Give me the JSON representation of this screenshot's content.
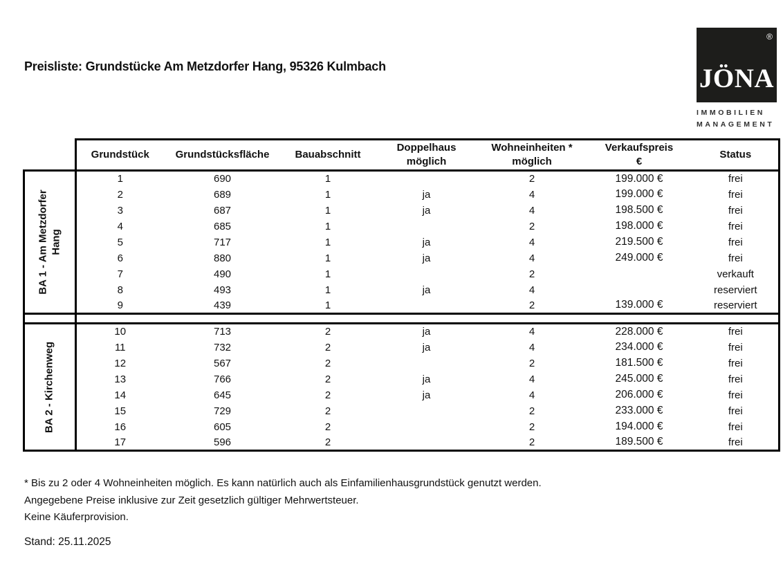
{
  "page": {
    "title": "Preisliste: Grundstücke Am Metzdorfer Hang, 95326 Kulmbach",
    "stand": "Stand: 25.11.2025"
  },
  "logo": {
    "name": "JÖNA",
    "registered": "®",
    "subtitle_line1": "IMMOBILIEN",
    "subtitle_line2": "MANAGEMENT"
  },
  "colors": {
    "logo_square": "#1d1d1b",
    "table_border": "#000000",
    "text": "#111111"
  },
  "table": {
    "columns": [
      {
        "line1": "Grundstück",
        "line2": ""
      },
      {
        "line1": "Grundstücksfläche",
        "line2": ""
      },
      {
        "line1": "Bauabschnitt",
        "line2": ""
      },
      {
        "line1": "Doppelhaus",
        "line2": "möglich"
      },
      {
        "line1": "Wohneinheiten *",
        "line2": "möglich"
      },
      {
        "line1": "Verkaufspreis",
        "line2": "€"
      },
      {
        "line1": "Status",
        "line2": ""
      }
    ],
    "sections": [
      {
        "label": "BA 1 - Am Metzdorfer Hang",
        "rows": [
          {
            "grundstueck": "1",
            "flaeche": "690",
            "bauabschnitt": "1",
            "doppelhaus": "",
            "wohneinheiten": "2",
            "verkaufspreis": "199.000 €",
            "status": "frei"
          },
          {
            "grundstueck": "2",
            "flaeche": "689",
            "bauabschnitt": "1",
            "doppelhaus": "ja",
            "wohneinheiten": "4",
            "verkaufspreis": "199.000 €",
            "status": "frei"
          },
          {
            "grundstueck": "3",
            "flaeche": "687",
            "bauabschnitt": "1",
            "doppelhaus": "ja",
            "wohneinheiten": "4",
            "verkaufspreis": "198.500 €",
            "status": "frei"
          },
          {
            "grundstueck": "4",
            "flaeche": "685",
            "bauabschnitt": "1",
            "doppelhaus": "",
            "wohneinheiten": "2",
            "verkaufspreis": "198.000 €",
            "status": "frei"
          },
          {
            "grundstueck": "5",
            "flaeche": "717",
            "bauabschnitt": "1",
            "doppelhaus": "ja",
            "wohneinheiten": "4",
            "verkaufspreis": "219.500 €",
            "status": "frei"
          },
          {
            "grundstueck": "6",
            "flaeche": "880",
            "bauabschnitt": "1",
            "doppelhaus": "ja",
            "wohneinheiten": "4",
            "verkaufspreis": "249.000 €",
            "status": "frei"
          },
          {
            "grundstueck": "7",
            "flaeche": "490",
            "bauabschnitt": "1",
            "doppelhaus": "",
            "wohneinheiten": "2",
            "verkaufspreis": "",
            "status": "verkauft"
          },
          {
            "grundstueck": "8",
            "flaeche": "493",
            "bauabschnitt": "1",
            "doppelhaus": "ja",
            "wohneinheiten": "4",
            "verkaufspreis": "",
            "status": "reserviert"
          },
          {
            "grundstueck": "9",
            "flaeche": "439",
            "bauabschnitt": "1",
            "doppelhaus": "",
            "wohneinheiten": "2",
            "verkaufspreis": "139.000 €",
            "status": "reserviert"
          }
        ]
      },
      {
        "label": "BA 2 - Kirchenweg",
        "rows": [
          {
            "grundstueck": "10",
            "flaeche": "713",
            "bauabschnitt": "2",
            "doppelhaus": "ja",
            "wohneinheiten": "4",
            "verkaufspreis": "228.000 €",
            "status": "frei"
          },
          {
            "grundstueck": "11",
            "flaeche": "732",
            "bauabschnitt": "2",
            "doppelhaus": "ja",
            "wohneinheiten": "4",
            "verkaufspreis": "234.000 €",
            "status": "frei"
          },
          {
            "grundstueck": "12",
            "flaeche": "567",
            "bauabschnitt": "2",
            "doppelhaus": "",
            "wohneinheiten": "2",
            "verkaufspreis": "181.500 €",
            "status": "frei"
          },
          {
            "grundstueck": "13",
            "flaeche": "766",
            "bauabschnitt": "2",
            "doppelhaus": "ja",
            "wohneinheiten": "4",
            "verkaufspreis": "245.000 €",
            "status": "frei"
          },
          {
            "grundstueck": "14",
            "flaeche": "645",
            "bauabschnitt": "2",
            "doppelhaus": "ja",
            "wohneinheiten": "4",
            "verkaufspreis": "206.000 €",
            "status": "frei"
          },
          {
            "grundstueck": "15",
            "flaeche": "729",
            "bauabschnitt": "2",
            "doppelhaus": "",
            "wohneinheiten": "2",
            "verkaufspreis": "233.000 €",
            "status": "frei"
          },
          {
            "grundstueck": "16",
            "flaeche": "605",
            "bauabschnitt": "2",
            "doppelhaus": "",
            "wohneinheiten": "2",
            "verkaufspreis": "194.000 €",
            "status": "frei"
          },
          {
            "grundstueck": "17",
            "flaeche": "596",
            "bauabschnitt": "2",
            "doppelhaus": "",
            "wohneinheiten": "2",
            "verkaufspreis": "189.500 €",
            "status": "frei"
          }
        ]
      }
    ]
  },
  "notes": {
    "line1": "* Bis zu 2 oder 4 Wohneinheiten möglich. Es kann natürlich auch als Einfamilienhausgrundstück genutzt werden.",
    "line2": "Angegebene Preise inklusive zur Zeit gesetzlich gültiger Mehrwertsteuer.",
    "line3": "Keine Käuferprovision."
  }
}
